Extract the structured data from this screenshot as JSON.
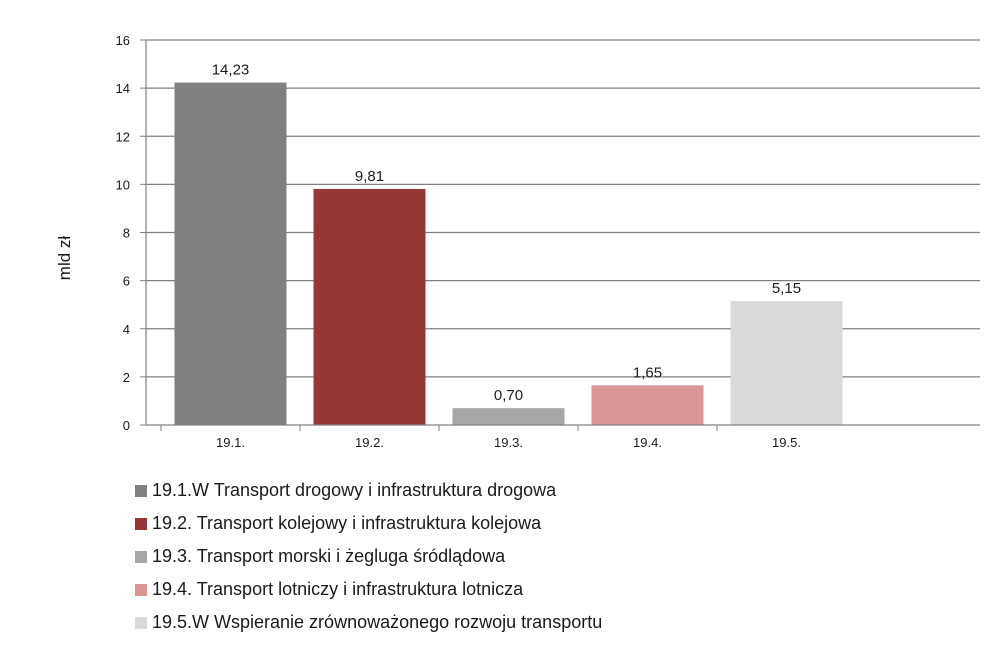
{
  "chart_data": {
    "type": "bar",
    "ylabel": "mld zł",
    "xlabel": "",
    "title": "",
    "ylim": [
      0,
      16
    ],
    "yticks": [
      0,
      2,
      4,
      6,
      8,
      10,
      12,
      14,
      16
    ],
    "ytick_labels": [
      "0",
      "2",
      "4",
      "6",
      "8",
      "10",
      "12",
      "14",
      "16"
    ],
    "grid": "horizontal",
    "legend_position": "bottom",
    "categories": [
      "19.1.",
      "19.2.",
      "19.3.",
      "19.4.",
      "19.5."
    ],
    "values": [
      14.23,
      9.81,
      0.7,
      1.65,
      5.15
    ],
    "value_labels": [
      "14,23",
      "9,81",
      "0,70",
      "1,65",
      "5,15"
    ],
    "colors": [
      "#808080",
      "#953735",
      "#a6a6a6",
      "#d99694",
      "#d9d9d9"
    ],
    "legend": [
      "19.1.W Transport drogowy i infrastruktura drogowa",
      "19.2. Transport kolejowy i infrastruktura kolejowa",
      "19.3. Transport morski i żegluga śródlądowa",
      "19.4. Transport lotniczy i infrastruktura lotnicza",
      "19.5.W Wspieranie zrównoważonego rozwoju transportu"
    ]
  }
}
